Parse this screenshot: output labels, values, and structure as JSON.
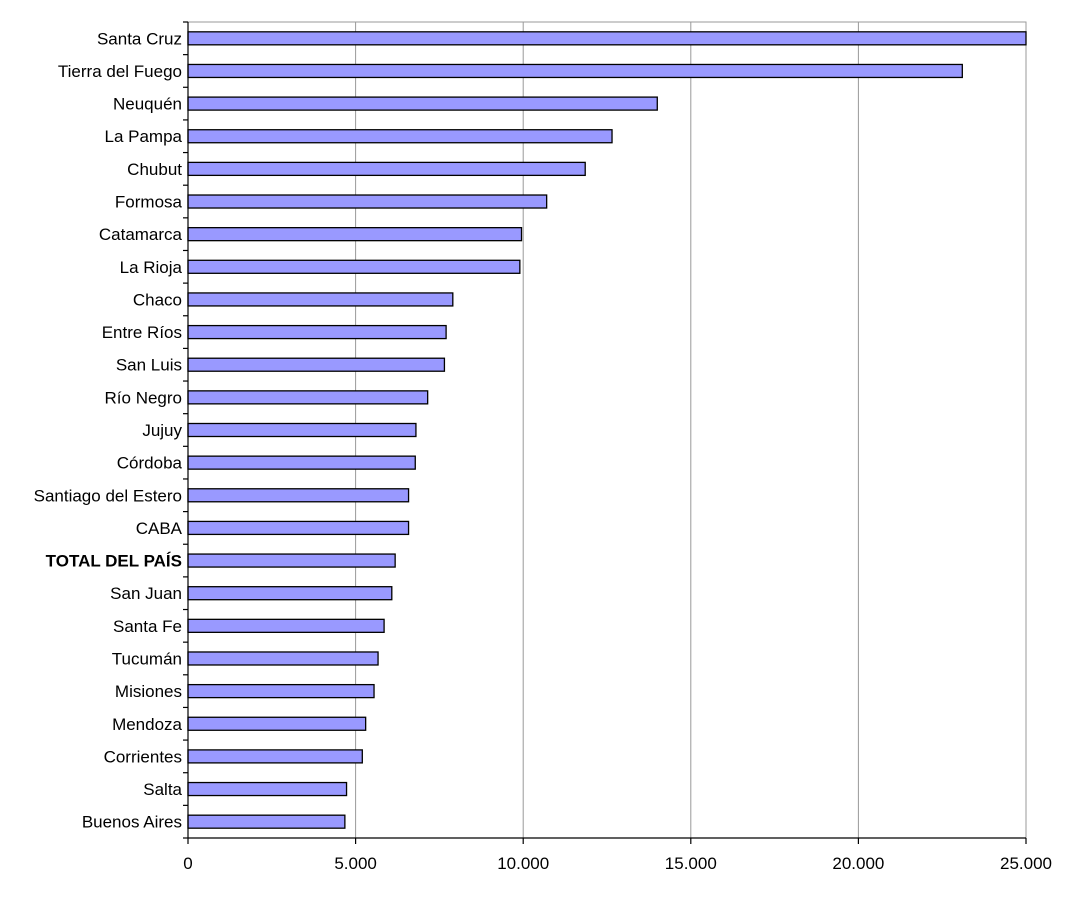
{
  "chart_data": {
    "type": "bar",
    "orientation": "horizontal",
    "categories": [
      "Santa Cruz",
      "Tierra del Fuego",
      "Neuquén",
      "La Pampa",
      "Chubut",
      "Formosa",
      "Catamarca",
      "La Rioja",
      "Chaco",
      "Entre Ríos",
      "San Luis",
      "Río Negro",
      "Jujuy",
      "Córdoba",
      "Santiago del Estero",
      "CABA",
      "TOTAL DEL PAÍS",
      "San Juan",
      "Santa Fe",
      "Tucumán",
      "Misiones",
      "Mendoza",
      "Corrientes",
      "Salta",
      "Buenos Aires"
    ],
    "values": [
      25000,
      23100,
      14000,
      12650,
      11850,
      10700,
      9950,
      9900,
      7900,
      7700,
      7650,
      7150,
      6800,
      6780,
      6580,
      6580,
      6180,
      6080,
      5850,
      5670,
      5550,
      5300,
      5200,
      4730,
      4680
    ],
    "highlight_category": "TOTAL DEL PAÍS",
    "xlim": [
      0,
      25000
    ],
    "xticks": [
      0,
      5000,
      10000,
      15000,
      20000,
      25000
    ],
    "xtick_labels": [
      "0",
      "5.000",
      "10.000",
      "15.000",
      "20.000",
      "25.000"
    ],
    "title": "",
    "xlabel": "",
    "ylabel": "",
    "grid": "vertical",
    "legend": "none",
    "bar_color": "#9999ff",
    "grid_color": "#999999"
  }
}
